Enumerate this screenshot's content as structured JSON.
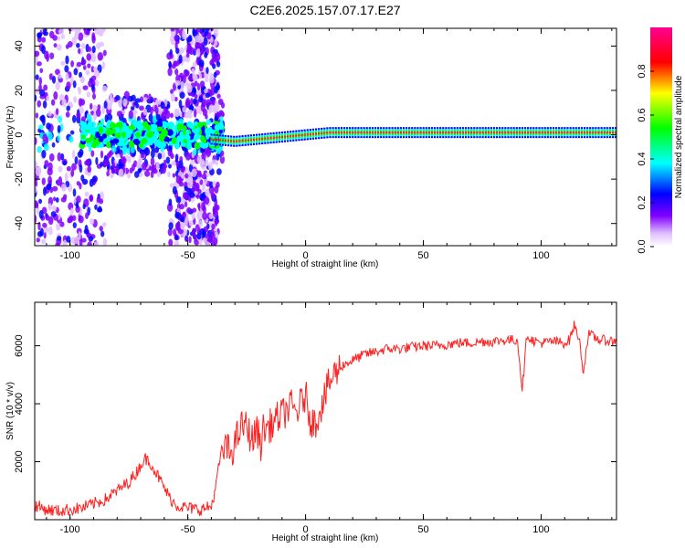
{
  "title": "C2E6.2025.157.07.17.E27",
  "colors": {
    "snr_line": "#ff2020",
    "frame": "#000000",
    "ridge_red": "#ff2020",
    "ridge_green": "#20ff20"
  },
  "chart_data": [
    {
      "type": "heatmap",
      "title": "C2E6.2025.157.07.17.E27",
      "xlabel": "Height of straight line (km)",
      "ylabel": "Frequency (Hz)",
      "xlim": [
        -115,
        132
      ],
      "ylim": [
        -50,
        48
      ],
      "xticks": [
        -100,
        -50,
        0,
        50,
        100
      ],
      "yticks": [
        -40,
        -20,
        0,
        20,
        40
      ],
      "colorbar": {
        "label": "Normalized spectral amplitude",
        "range": [
          0.0,
          1.0
        ],
        "ticks": [
          0.0,
          0.2,
          0.4,
          0.6,
          0.8
        ],
        "tick_labels": [
          "0.0",
          "0.2",
          "0.4",
          "0.6",
          "0.8"
        ],
        "colormap": [
          "#ffffff",
          "#d0a0ff",
          "#8000ff",
          "#0000ff",
          "#00ffff",
          "#00ff00",
          "#ffff00",
          "#ff0000",
          "#ff00a0"
        ]
      },
      "ridge": {
        "description_free_points_km": [
          -40,
          -30,
          -20,
          -10,
          0,
          10,
          20,
          50,
          100,
          132
        ],
        "frequency_hz": [
          -2,
          -3,
          -2,
          -1,
          0,
          1,
          1,
          1,
          1,
          1
        ]
      }
    },
    {
      "type": "line",
      "xlabel": "Height of straight line (km)",
      "ylabel": "SNR (10 * v/v)",
      "xlim": [
        -115,
        132
      ],
      "ylim": [
        0,
        7500
      ],
      "xticks": [
        -100,
        -50,
        0,
        50,
        100
      ],
      "yticks": [
        2000,
        4000,
        6000
      ],
      "series": [
        {
          "x": [
            -115,
            -110,
            -105,
            -100,
            -95,
            -90,
            -85,
            -80,
            -75,
            -72,
            -70,
            -68,
            -66,
            -64,
            -62,
            -60,
            -58,
            -55,
            -50,
            -45,
            -40,
            -38,
            -36,
            -34,
            -32,
            -30,
            -28,
            -26,
            -24,
            -22,
            -21,
            -20,
            -19,
            -18,
            -16,
            -14,
            -12,
            -10,
            -8,
            -6,
            -4,
            -2,
            0,
            2,
            4,
            6,
            8,
            10,
            12,
            15,
            20,
            25,
            30,
            35,
            40,
            45,
            50,
            55,
            60,
            65,
            70,
            75,
            80,
            85,
            90,
            92,
            94,
            96,
            100,
            105,
            110,
            112,
            114,
            116,
            118,
            120,
            125,
            132
          ],
          "y": [
            500,
            350,
            300,
            350,
            400,
            550,
            700,
            1000,
            1300,
            1600,
            1900,
            2100,
            2000,
            1700,
            1400,
            1100,
            800,
            500,
            400,
            350,
            450,
            1200,
            2300,
            2500,
            2300,
            2600,
            3100,
            3300,
            3000,
            2700,
            3200,
            2900,
            2600,
            3100,
            3200,
            3300,
            3500,
            3600,
            3800,
            3900,
            3700,
            4000,
            4300,
            3500,
            3300,
            3800,
            4200,
            4700,
            5000,
            5300,
            5500,
            5700,
            5800,
            5900,
            5900,
            5950,
            6000,
            6000,
            6050,
            6100,
            6100,
            6150,
            6150,
            6200,
            6200,
            4500,
            6400,
            6200,
            6100,
            6150,
            6100,
            6200,
            6700,
            6300,
            5100,
            6400,
            6200,
            6150
          ]
        }
      ]
    }
  ]
}
